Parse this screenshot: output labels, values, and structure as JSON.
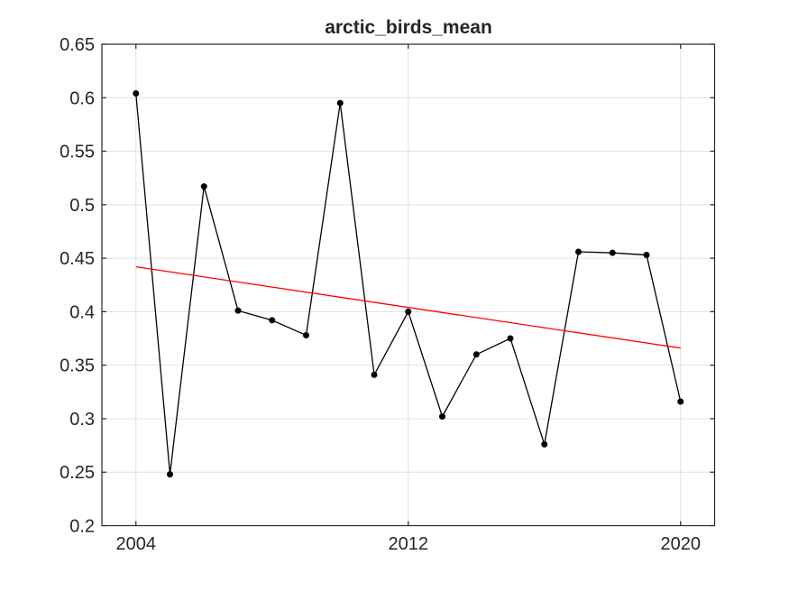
{
  "figure": {
    "background_color": "#ffffff"
  },
  "chart_data": {
    "type": "line",
    "title": "arctic_birds_mean",
    "xlabel": "",
    "ylabel": "",
    "x": [
      2004,
      2005,
      2006,
      2007,
      2008,
      2009,
      2010,
      2011,
      2012,
      2013,
      2014,
      2015,
      2016,
      2017,
      2018,
      2019,
      2020
    ],
    "series": [
      {
        "name": "arctic_birds_mean",
        "style": "line-with-markers",
        "color": "#000000",
        "marker": "filled-circle",
        "marker_color": "#000000",
        "values": [
          0.604,
          0.248,
          0.517,
          0.401,
          0.392,
          0.378,
          0.595,
          0.341,
          0.4,
          0.302,
          0.36,
          0.375,
          0.276,
          0.456,
          0.455,
          0.453,
          0.316
        ]
      },
      {
        "name": "linear-trend",
        "style": "line",
        "color": "#ff0000",
        "x": [
          2004,
          2020
        ],
        "values": [
          0.442,
          0.366
        ]
      }
    ],
    "xlim": [
      2003,
      2021
    ],
    "ylim": [
      0.2,
      0.65
    ],
    "xticks": [
      2004,
      2012,
      2020
    ],
    "xtick_labels": [
      "2004",
      "2012",
      "2020"
    ],
    "yticks": [
      0.2,
      0.25,
      0.3,
      0.35,
      0.4,
      0.45,
      0.5,
      0.55,
      0.6,
      0.65
    ],
    "ytick_labels": [
      "0.2",
      "0.25",
      "0.3",
      "0.35",
      "0.4",
      "0.45",
      "0.5",
      "0.55",
      "0.6",
      "0.65"
    ],
    "grid": true,
    "grid_color": "#e0e0e0",
    "axis_color": "#262626",
    "tick_label_color": "#262626",
    "legend_position": "none"
  }
}
